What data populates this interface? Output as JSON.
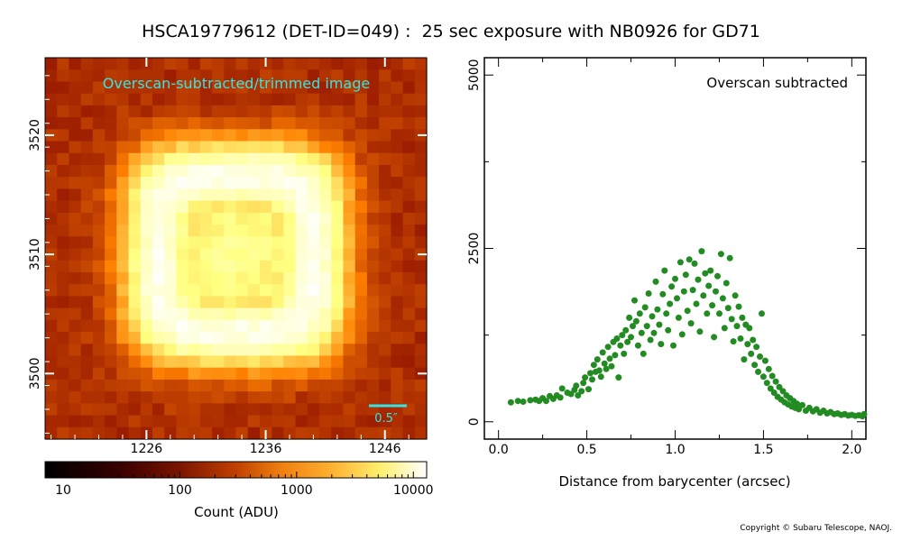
{
  "page": {
    "title": "HSCA19779612 (DET-ID=049) :  25 sec exposure with NB0926 for GD71",
    "copyright": "Copyright © Subaru Telescope, NAOJ."
  },
  "colors": {
    "cyan_annotation": "#33e6e6",
    "scatter_points": "#228b22",
    "axis": "#000000"
  },
  "chart_data": [
    {
      "type": "heatmap",
      "annotation": "Overscan-subtracted/trimmed image",
      "x_ticks": [
        "1226",
        "1236",
        "1246"
      ],
      "x_tick_values": [
        1226,
        1236,
        1246
      ],
      "y_ticks": [
        "3500",
        "3510",
        "3520"
      ],
      "y_tick_values": [
        3500,
        3510,
        3520
      ],
      "xlim": [
        1217.5,
        1249.5
      ],
      "ylim": [
        3494.5,
        3526.5
      ],
      "scale_bar_label": "0.5″",
      "colormap": "afmhot",
      "description_of_data": "star image with bright annular ring, center near (1237, 3509), count range ~30-4000 ADU"
    },
    {
      "type": "colorbar",
      "scale": "log",
      "range": [
        7,
        13000
      ],
      "ticks": [
        "10",
        "100",
        "1000",
        "10000"
      ],
      "tick_values": [
        10,
        100,
        1000,
        10000
      ],
      "label": "Count (ADU)"
    },
    {
      "type": "scatter",
      "annotation": "Overscan subtracted",
      "xlabel": "Distance from barycenter (arcsec)",
      "ylabel": "",
      "x_ticks": [
        "0.0",
        "0.5",
        "1.0",
        "1.5",
        "2.0"
      ],
      "x_tick_values": [
        0.0,
        0.5,
        1.0,
        1.5,
        2.0
      ],
      "y_ticks": [
        "0",
        "2500",
        "5000"
      ],
      "y_tick_values": [
        0,
        2500,
        5000
      ],
      "xlim": [
        -0.08,
        2.08
      ],
      "ylim": [
        -250,
        5250
      ],
      "series": [
        {
          "points": [
            [
              0.07,
              280
            ],
            [
              0.11,
              300
            ],
            [
              0.14,
              290
            ],
            [
              0.18,
              310
            ],
            [
              0.21,
              320
            ],
            [
              0.23,
              300
            ],
            [
              0.25,
              340
            ],
            [
              0.27,
              300
            ],
            [
              0.29,
              370
            ],
            [
              0.31,
              330
            ],
            [
              0.33,
              380
            ],
            [
              0.35,
              350
            ],
            [
              0.36,
              480
            ],
            [
              0.39,
              420
            ],
            [
              0.41,
              400
            ],
            [
              0.43,
              460
            ],
            [
              0.44,
              520
            ],
            [
              0.45,
              380
            ],
            [
              0.47,
              440
            ],
            [
              0.48,
              560
            ],
            [
              0.49,
              640
            ],
            [
              0.51,
              470
            ],
            [
              0.52,
              700
            ],
            [
              0.53,
              610
            ],
            [
              0.54,
              820
            ],
            [
              0.55,
              720
            ],
            [
              0.56,
              900
            ],
            [
              0.57,
              740
            ],
            [
              0.58,
              650
            ],
            [
              0.59,
              1000
            ],
            [
              0.6,
              840
            ],
            [
              0.61,
              760
            ],
            [
              0.62,
              1080
            ],
            [
              0.63,
              910
            ],
            [
              0.64,
              800
            ],
            [
              0.65,
              1150
            ],
            [
              0.66,
              960
            ],
            [
              0.67,
              1200
            ],
            [
              0.68,
              640
            ],
            [
              0.69,
              1100
            ],
            [
              0.7,
              1250
            ],
            [
              0.71,
              980
            ],
            [
              0.72,
              1320
            ],
            [
              0.73,
              1150
            ],
            [
              0.74,
              1500
            ],
            [
              0.75,
              1220
            ],
            [
              0.76,
              1380
            ],
            [
              0.77,
              1750
            ],
            [
              0.78,
              1450
            ],
            [
              0.79,
              1100
            ],
            [
              0.8,
              1560
            ],
            [
              0.81,
              1280
            ],
            [
              0.82,
              980
            ],
            [
              0.83,
              1650
            ],
            [
              0.84,
              1380
            ],
            [
              0.85,
              1850
            ],
            [
              0.86,
              1180
            ],
            [
              0.87,
              1520
            ],
            [
              0.88,
              1280
            ],
            [
              0.89,
              2020
            ],
            [
              0.9,
              1620
            ],
            [
              0.91,
              1400
            ],
            [
              0.92,
              1120
            ],
            [
              0.93,
              1840
            ],
            [
              0.94,
              2180
            ],
            [
              0.95,
              1560
            ],
            [
              0.96,
              1320
            ],
            [
              0.97,
              1700
            ],
            [
              0.98,
              1950
            ],
            [
              0.99,
              1100
            ],
            [
              1.0,
              2060
            ],
            [
              1.01,
              1780
            ],
            [
              1.02,
              1500
            ],
            [
              1.03,
              2300
            ],
            [
              1.04,
              1260
            ],
            [
              1.05,
              1880
            ],
            [
              1.06,
              2120
            ],
            [
              1.07,
              1600
            ],
            [
              1.08,
              2340
            ],
            [
              1.09,
              1420
            ],
            [
              1.1,
              1900
            ],
            [
              1.11,
              2280
            ],
            [
              1.12,
              1700
            ],
            [
              1.13,
              2050
            ],
            [
              1.14,
              1300
            ],
            [
              1.15,
              2460
            ],
            [
              1.16,
              1820
            ],
            [
              1.17,
              2140
            ],
            [
              1.18,
              1560
            ],
            [
              1.19,
              1960
            ],
            [
              1.2,
              2180
            ],
            [
              1.21,
              1680
            ],
            [
              1.22,
              1220
            ],
            [
              1.23,
              1880
            ],
            [
              1.24,
              2100
            ],
            [
              1.25,
              1560
            ],
            [
              1.26,
              2420
            ],
            [
              1.27,
              1780
            ],
            [
              1.28,
              1350
            ],
            [
              1.29,
              2000
            ],
            [
              1.3,
              1640
            ],
            [
              1.31,
              2360
            ],
            [
              1.32,
              1480
            ],
            [
              1.33,
              1160
            ],
            [
              1.34,
              1820
            ],
            [
              1.35,
              1380
            ],
            [
              1.36,
              1660
            ],
            [
              1.37,
              1200
            ],
            [
              1.38,
              1500
            ],
            [
              1.39,
              900
            ],
            [
              1.4,
              1400
            ],
            [
              1.41,
              1120
            ],
            [
              1.42,
              1350
            ],
            [
              1.43,
              980
            ],
            [
              1.44,
              1180
            ],
            [
              1.45,
              820
            ],
            [
              1.46,
              1080
            ],
            [
              1.47,
              720
            ],
            [
              1.48,
              940
            ],
            [
              1.49,
              1560
            ],
            [
              1.5,
              650
            ],
            [
              1.51,
              880
            ],
            [
              1.52,
              560
            ],
            [
              1.53,
              760
            ],
            [
              1.54,
              480
            ],
            [
              1.55,
              660
            ],
            [
              1.56,
              420
            ],
            [
              1.57,
              580
            ],
            [
              1.58,
              360
            ],
            [
              1.59,
              500
            ],
            [
              1.6,
              320
            ],
            [
              1.61,
              440
            ],
            [
              1.62,
              280
            ],
            [
              1.63,
              380
            ],
            [
              1.64,
              250
            ],
            [
              1.65,
              340
            ],
            [
              1.66,
              220
            ],
            [
              1.67,
              300
            ],
            [
              1.68,
              200
            ],
            [
              1.69,
              260
            ],
            [
              1.7,
              180
            ],
            [
              1.72,
              240
            ],
            [
              1.74,
              160
            ],
            [
              1.76,
              200
            ],
            [
              1.78,
              150
            ],
            [
              1.8,
              180
            ],
            [
              1.82,
              130
            ],
            [
              1.84,
              160
            ],
            [
              1.86,
              120
            ],
            [
              1.88,
              140
            ],
            [
              1.9,
              110
            ],
            [
              1.92,
              120
            ],
            [
              1.94,
              100
            ],
            [
              1.96,
              110
            ],
            [
              1.98,
              90
            ],
            [
              2.0,
              100
            ],
            [
              2.02,
              85
            ],
            [
              2.04,
              95
            ],
            [
              2.06,
              80
            ],
            [
              2.07,
              110
            ]
          ]
        }
      ]
    }
  ]
}
